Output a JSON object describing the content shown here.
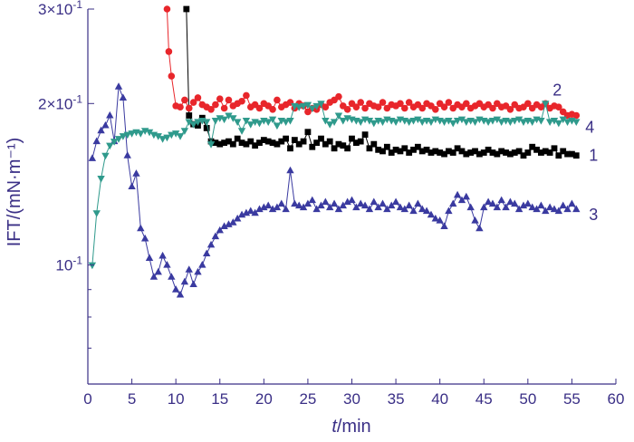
{
  "chart_data": {
    "type": "line",
    "xlabel_italic": "t",
    "xlabel_rest": "/min",
    "ylabel": "IFT/(mN·m⁻¹)",
    "xlim": [
      0,
      60
    ],
    "ylim": [
      0.06,
      0.3
    ],
    "y_scale": "log",
    "grid": false,
    "x_ticks": [
      0,
      5,
      10,
      15,
      20,
      25,
      30,
      35,
      40,
      45,
      50,
      55,
      60
    ],
    "y_ticks": [
      {
        "value": 0.1,
        "mantissa": "10",
        "exponent": "-1"
      },
      {
        "value": 0.2,
        "mantissa": "2×10",
        "exponent": "-1"
      },
      {
        "value": 0.3,
        "mantissa": "3×10",
        "exponent": "-1"
      }
    ],
    "series": [
      {
        "name": "1",
        "color": "#000000",
        "marker": "square",
        "x": [
          11.2,
          11.5,
          12.0,
          12.5,
          13.0,
          13.5,
          14.0,
          14.5,
          15.0,
          15.5,
          16.0,
          16.5,
          17.0,
          17.5,
          18.0,
          18.5,
          19.0,
          19.5,
          20.0,
          20.5,
          21.0,
          21.5,
          22.0,
          22.5,
          23.0,
          23.5,
          24.0,
          24.5,
          25.0,
          25.5,
          26.0,
          26.5,
          27.0,
          27.5,
          28.0,
          28.5,
          29.0,
          29.5,
          30.0,
          30.5,
          31.0,
          31.5,
          32.0,
          32.5,
          33.0,
          33.5,
          34.0,
          34.5,
          35.0,
          35.5,
          36.0,
          36.5,
          37.0,
          37.5,
          38.0,
          38.5,
          39.0,
          39.5,
          40.0,
          40.5,
          41.0,
          41.5,
          42.0,
          42.5,
          43.0,
          43.5,
          44.0,
          44.5,
          45.0,
          45.5,
          46.0,
          46.5,
          47.0,
          47.5,
          48.0,
          48.5,
          49.0,
          49.5,
          50.0,
          50.5,
          51.0,
          51.5,
          52.0,
          52.5,
          53.0,
          53.5,
          54.0,
          54.5,
          55.0,
          55.5
        ],
        "y": [
          0.3,
          0.19,
          0.183,
          0.182,
          0.188,
          0.18,
          0.17,
          0.169,
          0.168,
          0.169,
          0.17,
          0.168,
          0.172,
          0.169,
          0.168,
          0.17,
          0.167,
          0.169,
          0.171,
          0.17,
          0.169,
          0.168,
          0.17,
          0.172,
          0.165,
          0.171,
          0.168,
          0.17,
          0.177,
          0.166,
          0.169,
          0.172,
          0.168,
          0.17,
          0.165,
          0.168,
          0.167,
          0.165,
          0.172,
          0.169,
          0.17,
          0.175,
          0.165,
          0.168,
          0.164,
          0.163,
          0.166,
          0.162,
          0.164,
          0.163,
          0.165,
          0.162,
          0.164,
          0.166,
          0.163,
          0.164,
          0.162,
          0.163,
          0.162,
          0.161,
          0.163,
          0.162,
          0.165,
          0.163,
          0.161,
          0.162,
          0.163,
          0.161,
          0.162,
          0.164,
          0.162,
          0.161,
          0.163,
          0.162,
          0.161,
          0.162,
          0.163,
          0.16,
          0.162,
          0.166,
          0.164,
          0.162,
          0.163,
          0.162,
          0.165,
          0.16,
          0.163,
          0.161,
          0.161,
          0.16
        ]
      },
      {
        "name": "2",
        "color": "#e8262b",
        "marker": "circle",
        "x": [
          9.0,
          9.2,
          9.5,
          10.0,
          10.5,
          11.0,
          11.5,
          12.0,
          12.5,
          13.0,
          13.5,
          14.0,
          14.5,
          15.0,
          15.5,
          16.0,
          16.5,
          17.0,
          17.5,
          18.0,
          18.5,
          19.0,
          19.5,
          20.0,
          20.5,
          21.0,
          21.5,
          22.0,
          22.5,
          23.0,
          23.5,
          24.0,
          24.5,
          25.0,
          25.5,
          26.0,
          26.5,
          27.0,
          27.5,
          28.0,
          28.5,
          29.0,
          29.5,
          30.0,
          30.5,
          31.0,
          31.5,
          32.0,
          32.5,
          33.0,
          33.5,
          34.0,
          34.5,
          35.0,
          35.5,
          36.0,
          36.5,
          37.0,
          37.5,
          38.0,
          38.5,
          39.0,
          39.5,
          40.0,
          40.5,
          41.0,
          41.5,
          42.0,
          42.5,
          43.0,
          43.5,
          44.0,
          44.5,
          45.0,
          45.5,
          46.0,
          46.5,
          47.0,
          47.5,
          48.0,
          48.5,
          49.0,
          49.5,
          50.0,
          50.5,
          51.0,
          51.5,
          52.0,
          52.5,
          53.0,
          53.5,
          54.0,
          54.5,
          55.0,
          55.5
        ],
        "y": [
          0.3,
          0.25,
          0.225,
          0.198,
          0.197,
          0.203,
          0.196,
          0.201,
          0.205,
          0.199,
          0.197,
          0.195,
          0.199,
          0.204,
          0.196,
          0.203,
          0.198,
          0.2,
          0.202,
          0.207,
          0.197,
          0.199,
          0.196,
          0.2,
          0.198,
          0.195,
          0.203,
          0.197,
          0.199,
          0.201,
          0.196,
          0.2,
          0.198,
          0.193,
          0.196,
          0.195,
          0.199,
          0.197,
          0.201,
          0.203,
          0.206,
          0.198,
          0.195,
          0.2,
          0.197,
          0.201,
          0.196,
          0.2,
          0.198,
          0.197,
          0.201,
          0.196,
          0.199,
          0.198,
          0.2,
          0.196,
          0.201,
          0.197,
          0.199,
          0.196,
          0.2,
          0.198,
          0.195,
          0.2,
          0.197,
          0.201,
          0.196,
          0.199,
          0.197,
          0.2,
          0.196,
          0.198,
          0.2,
          0.197,
          0.199,
          0.196,
          0.2,
          0.197,
          0.198,
          0.195,
          0.199,
          0.196,
          0.197,
          0.2,
          0.196,
          0.199,
          0.197,
          0.2,
          0.196,
          0.198,
          0.197,
          0.193,
          0.19,
          0.191,
          0.19
        ]
      },
      {
        "name": "3",
        "color": "#3a3aa0",
        "marker": "triangle-up",
        "x": [
          0.5,
          1.0,
          1.5,
          2.0,
          2.5,
          3.0,
          3.5,
          4.0,
          4.5,
          5.0,
          5.5,
          6.0,
          6.5,
          7.0,
          7.5,
          8.0,
          8.5,
          9.0,
          9.5,
          10.0,
          10.5,
          11.0,
          11.5,
          12.0,
          12.5,
          13.0,
          13.5,
          14.0,
          14.5,
          15.0,
          15.5,
          16.0,
          16.5,
          17.0,
          17.5,
          18.0,
          18.5,
          19.0,
          19.5,
          20.0,
          20.5,
          21.0,
          21.5,
          22.0,
          22.5,
          23.0,
          23.5,
          24.0,
          24.5,
          25.0,
          25.5,
          26.0,
          26.5,
          27.0,
          27.5,
          28.0,
          28.5,
          29.0,
          29.5,
          30.0,
          30.5,
          31.0,
          31.5,
          32.0,
          32.5,
          33.0,
          33.5,
          34.0,
          34.5,
          35.0,
          35.5,
          36.0,
          36.5,
          37.0,
          37.5,
          38.0,
          38.5,
          39.0,
          39.5,
          40.0,
          40.5,
          41.0,
          41.5,
          42.0,
          42.5,
          43.0,
          43.5,
          44.0,
          44.5,
          45.0,
          45.5,
          46.0,
          46.5,
          47.0,
          47.5,
          48.0,
          48.5,
          49.0,
          49.5,
          50.0,
          50.5,
          51.0,
          51.5,
          52.0,
          52.5,
          53.0,
          53.5,
          54.0,
          54.5,
          55.0,
          55.5
        ],
        "y": [
          0.158,
          0.17,
          0.178,
          0.182,
          0.19,
          0.17,
          0.215,
          0.205,
          0.16,
          0.14,
          0.148,
          0.117,
          0.112,
          0.103,
          0.095,
          0.097,
          0.104,
          0.1,
          0.095,
          0.09,
          0.088,
          0.093,
          0.098,
          0.092,
          0.097,
          0.1,
          0.105,
          0.109,
          0.113,
          0.116,
          0.118,
          0.119,
          0.12,
          0.122,
          0.124,
          0.125,
          0.126,
          0.125,
          0.127,
          0.128,
          0.129,
          0.127,
          0.128,
          0.13,
          0.127,
          0.15,
          0.13,
          0.129,
          0.128,
          0.13,
          0.132,
          0.127,
          0.129,
          0.131,
          0.128,
          0.13,
          0.127,
          0.129,
          0.131,
          0.132,
          0.128,
          0.13,
          0.129,
          0.127,
          0.131,
          0.128,
          0.13,
          0.127,
          0.129,
          0.131,
          0.128,
          0.127,
          0.129,
          0.126,
          0.13,
          0.127,
          0.126,
          0.124,
          0.122,
          0.121,
          0.118,
          0.126,
          0.13,
          0.135,
          0.132,
          0.134,
          0.128,
          0.121,
          0.117,
          0.128,
          0.131,
          0.13,
          0.128,
          0.132,
          0.128,
          0.131,
          0.13,
          0.127,
          0.129,
          0.13,
          0.128,
          0.127,
          0.129,
          0.126,
          0.128,
          0.127,
          0.126,
          0.129,
          0.127,
          0.13,
          0.127
        ]
      },
      {
        "name": "4",
        "color": "#2f9a8c",
        "marker": "triangle-down",
        "x": [
          0.5,
          1.0,
          1.5,
          2.0,
          2.5,
          3.0,
          3.5,
          4.0,
          4.5,
          5.0,
          5.5,
          6.0,
          6.5,
          7.0,
          7.5,
          8.0,
          8.5,
          9.0,
          9.5,
          10.0,
          10.5,
          11.0,
          11.5,
          12.0,
          12.5,
          13.0,
          13.5,
          14.0,
          14.5,
          15.0,
          15.5,
          16.0,
          16.5,
          17.0,
          17.5,
          18.0,
          18.5,
          19.0,
          19.5,
          20.0,
          20.5,
          21.0,
          21.5,
          22.0,
          22.5,
          23.0,
          23.5,
          24.0,
          24.5,
          25.0,
          25.5,
          26.0,
          26.5,
          27.0,
          27.5,
          28.0,
          28.5,
          29.0,
          29.5,
          30.0,
          30.5,
          31.0,
          31.5,
          32.0,
          32.5,
          33.0,
          33.5,
          34.0,
          34.5,
          35.0,
          35.5,
          36.0,
          36.5,
          37.0,
          37.5,
          38.0,
          38.5,
          39.0,
          39.5,
          40.0,
          40.5,
          41.0,
          41.5,
          42.0,
          42.5,
          43.0,
          43.5,
          44.0,
          44.5,
          45.0,
          45.5,
          46.0,
          46.5,
          47.0,
          47.5,
          48.0,
          48.5,
          49.0,
          49.5,
          50.0,
          50.5,
          51.0,
          51.5,
          52.0,
          52.5,
          53.0,
          53.5,
          54.0,
          54.5,
          55.0,
          55.5
        ],
        "y": [
          0.1,
          0.125,
          0.145,
          0.16,
          0.167,
          0.17,
          0.172,
          0.174,
          0.175,
          0.176,
          0.177,
          0.176,
          0.178,
          0.177,
          0.175,
          0.174,
          0.172,
          0.173,
          0.175,
          0.176,
          0.174,
          0.178,
          0.185,
          0.183,
          0.185,
          0.186,
          0.185,
          0.168,
          0.186,
          0.188,
          0.187,
          0.19,
          0.188,
          0.185,
          0.178,
          0.186,
          0.183,
          0.185,
          0.184,
          0.186,
          0.185,
          0.187,
          0.182,
          0.186,
          0.185,
          0.186,
          0.198,
          0.197,
          0.198,
          0.199,
          0.196,
          0.198,
          0.2,
          0.186,
          0.183,
          0.185,
          0.19,
          0.186,
          0.188,
          0.187,
          0.186,
          0.185,
          0.187,
          0.186,
          0.184,
          0.186,
          0.185,
          0.187,
          0.186,
          0.185,
          0.187,
          0.186,
          0.185,
          0.186,
          0.187,
          0.185,
          0.186,
          0.185,
          0.187,
          0.186,
          0.185,
          0.186,
          0.184,
          0.186,
          0.187,
          0.185,
          0.186,
          0.185,
          0.187,
          0.186,
          0.185,
          0.186,
          0.187,
          0.185,
          0.186,
          0.185,
          0.186,
          0.187,
          0.185,
          0.186,
          0.185,
          0.187,
          0.186,
          0.2,
          0.185,
          0.186,
          0.184,
          0.187,
          0.185,
          0.186,
          0.185
        ]
      }
    ]
  }
}
